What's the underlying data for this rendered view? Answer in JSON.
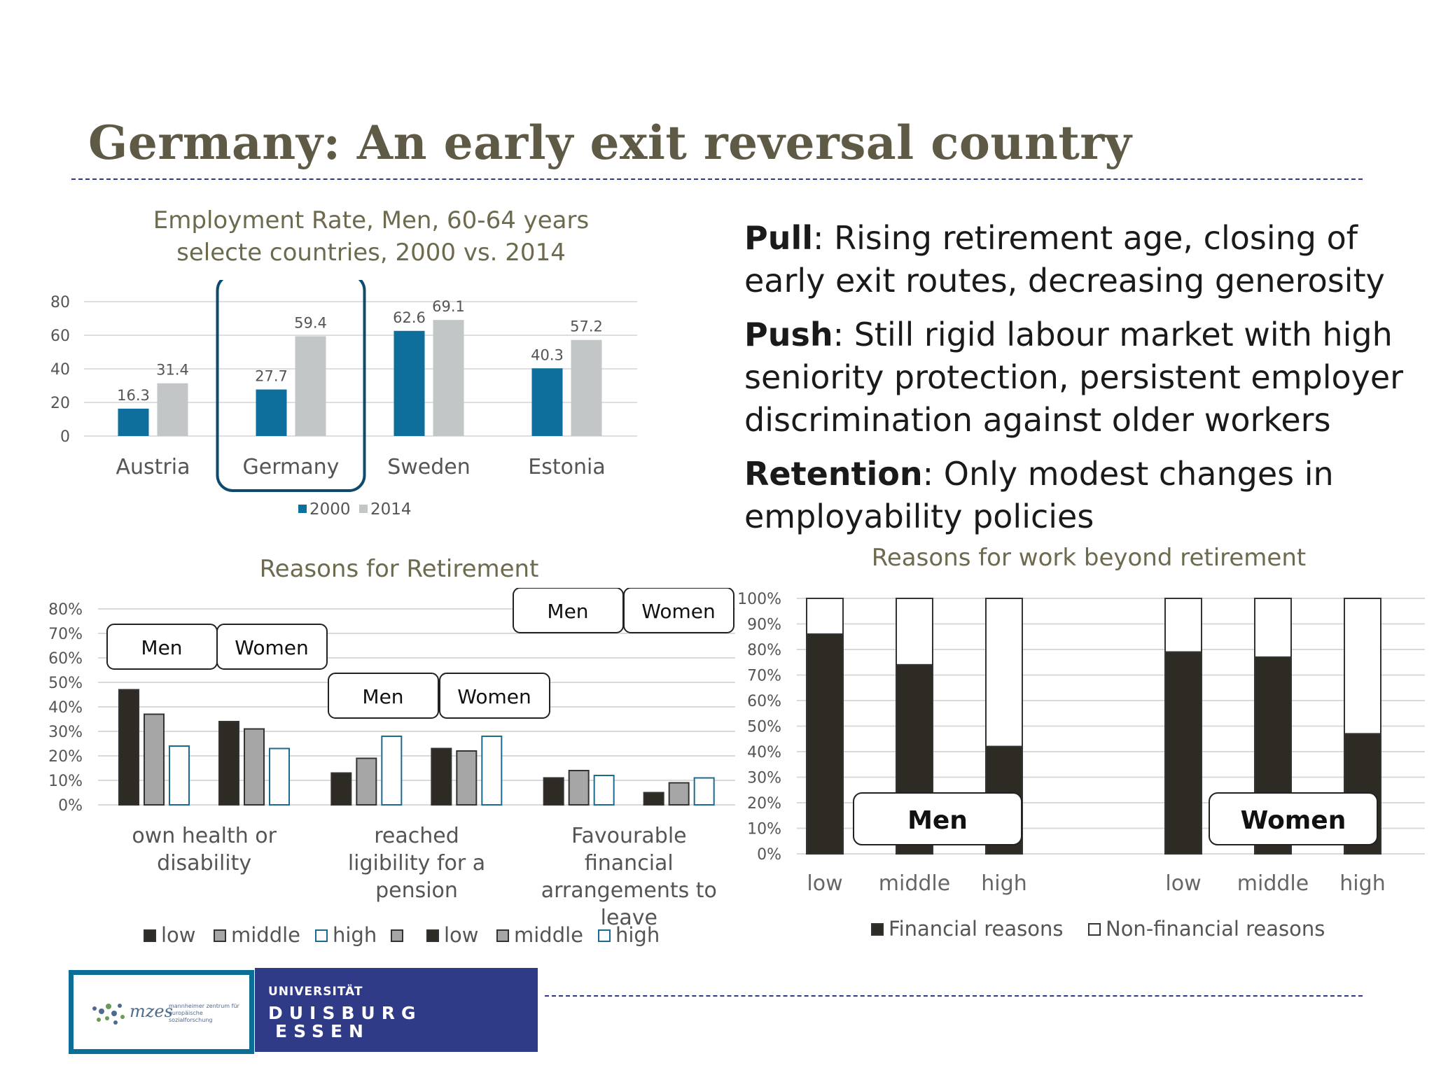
{
  "slide": {
    "title": "Germany: An early exit reversal country",
    "bullets": [
      {
        "bold": "Pull",
        "text": ": Rising retirement age, closing of early exit routes, decreasing generosity"
      },
      {
        "bold": "Push",
        "text": ": Still rigid labour market with high seniority protection, persistent employer discrimination against older workers"
      },
      {
        "bold": "Retention",
        "text": ": Only modest changes in employability policies"
      }
    ],
    "logos": {
      "mzes_text": "mzes",
      "mzes_sub": "mannheimer zentrum für europäische sozialforschung",
      "ude_line1": "UNIVERSITÄT",
      "ude_line2": "DUISBURG",
      "ude_line3": "ESSEN"
    }
  },
  "chart_data": [
    {
      "type": "bar",
      "title_line1": "Employment Rate, Men, 60-64 years",
      "title_line2": "selecte countries, 2000 vs. 2014",
      "categories": [
        "Austria",
        "Germany",
        "Sweden",
        "Estonia"
      ],
      "series": [
        {
          "name": "2000",
          "values": [
            16.3,
            27.7,
            62.6,
            40.3
          ],
          "color": "#0e6f9c"
        },
        {
          "name": "2014",
          "values": [
            31.4,
            59.4,
            69.1,
            57.2
          ],
          "color": "#c2c6c7"
        }
      ],
      "yticks": [
        "0",
        "20",
        "40",
        "60",
        "80"
      ],
      "ylim": [
        0,
        80
      ],
      "highlight": "Germany",
      "legend": "bottom",
      "grid": true
    },
    {
      "type": "bar",
      "title": "Reasons for Retirement",
      "categories": [
        "own health or disability",
        "reached ligibility for a pension",
        "Favourable financial arrangements to leave"
      ],
      "groups": [
        "Men",
        "Women"
      ],
      "series": [
        {
          "name": "low",
          "values": [
            [
              47,
              34
            ],
            [
              13,
              23
            ],
            [
              11,
              5
            ]
          ],
          "color": "#2e2a24"
        },
        {
          "name": "middle",
          "values": [
            [
              37,
              31
            ],
            [
              19,
              22
            ],
            [
              14,
              9
            ]
          ],
          "color": "#a6a6a6"
        },
        {
          "name": "high",
          "values": [
            [
              24,
              23
            ],
            [
              28,
              28
            ],
            [
              12,
              11
            ]
          ],
          "color": "#ffffff"
        }
      ],
      "yticks": [
        "0%",
        "10%",
        "20%",
        "30%",
        "40%",
        "50%",
        "60%",
        "70%",
        "80%"
      ],
      "ylim": [
        0,
        80
      ],
      "legend_items": [
        "low",
        "middle",
        "high",
        "",
        "low",
        "middle",
        "high"
      ],
      "legend": "bottom",
      "grid": true
    },
    {
      "type": "bar",
      "stacked": true,
      "title": "Reasons for work beyond retirement",
      "groups": [
        {
          "label": "Men",
          "categories": [
            "low",
            "middle",
            "high"
          ],
          "financial": [
            86,
            74,
            42
          ]
        },
        {
          "label": "Women",
          "categories": [
            "low",
            "middle",
            "high"
          ],
          "financial": [
            79,
            77,
            47
          ]
        }
      ],
      "series": [
        {
          "name": "Financial reasons",
          "color": "#2e2a24"
        },
        {
          "name": "Non-financial reasons",
          "color": "#ffffff"
        }
      ],
      "yticks": [
        "0%",
        "10%",
        "20%",
        "30%",
        "40%",
        "50%",
        "60%",
        "70%",
        "80%",
        "90%",
        "100%"
      ],
      "ylim": [
        0,
        100
      ],
      "legend": "bottom",
      "grid": true
    }
  ]
}
